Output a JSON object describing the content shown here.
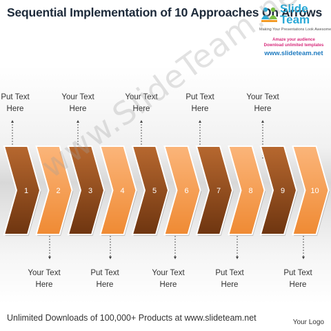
{
  "title": "Sequential Implementation of 10 Approaches On Arrows",
  "logo": {
    "brand_top": "Slide",
    "brand_bottom": "Team",
    "tagline": "Making Your Presentations Look Awesome",
    "line1": "Amaze your audience",
    "line2": "Download unlimited templates",
    "url": "www.slideteam.net"
  },
  "watermark": "www.SlideTeam.net",
  "arrows": [
    {
      "number": "1",
      "color": "dark"
    },
    {
      "number": "2",
      "color": "light"
    },
    {
      "number": "3",
      "color": "dark"
    },
    {
      "number": "4",
      "color": "light"
    },
    {
      "number": "5",
      "color": "dark"
    },
    {
      "number": "6",
      "color": "light"
    },
    {
      "number": "7",
      "color": "dark"
    },
    {
      "number": "8",
      "color": "light"
    },
    {
      "number": "9",
      "color": "dark"
    },
    {
      "number": "10",
      "color": "light"
    }
  ],
  "colors": {
    "dark_top": "#b7682f",
    "dark_bottom": "#6e3510",
    "light_top": "#fbb57a",
    "light_bottom": "#ef8a33"
  },
  "top_labels": [
    {
      "line1": "Put Text",
      "line2": "Here"
    },
    {
      "line1": "Your Text",
      "line2": "Here"
    },
    {
      "line1": "Your Text",
      "line2": "Here"
    },
    {
      "line1": "Put Text",
      "line2": "Here"
    },
    {
      "line1": "Your Text",
      "line2": "Here"
    }
  ],
  "bottom_labels": [
    {
      "line1": "Your Text",
      "line2": "Here"
    },
    {
      "line1": "Put Text",
      "line2": "Here"
    },
    {
      "line1": "Your Text",
      "line2": "Here"
    },
    {
      "line1": "Put Text",
      "line2": "Here"
    },
    {
      "line1": "Put Text",
      "line2": "Here"
    }
  ],
  "footer": "Unlimited Downloads of 100,000+ Products at www.slideteam.net",
  "your_logo": "Your Logo"
}
